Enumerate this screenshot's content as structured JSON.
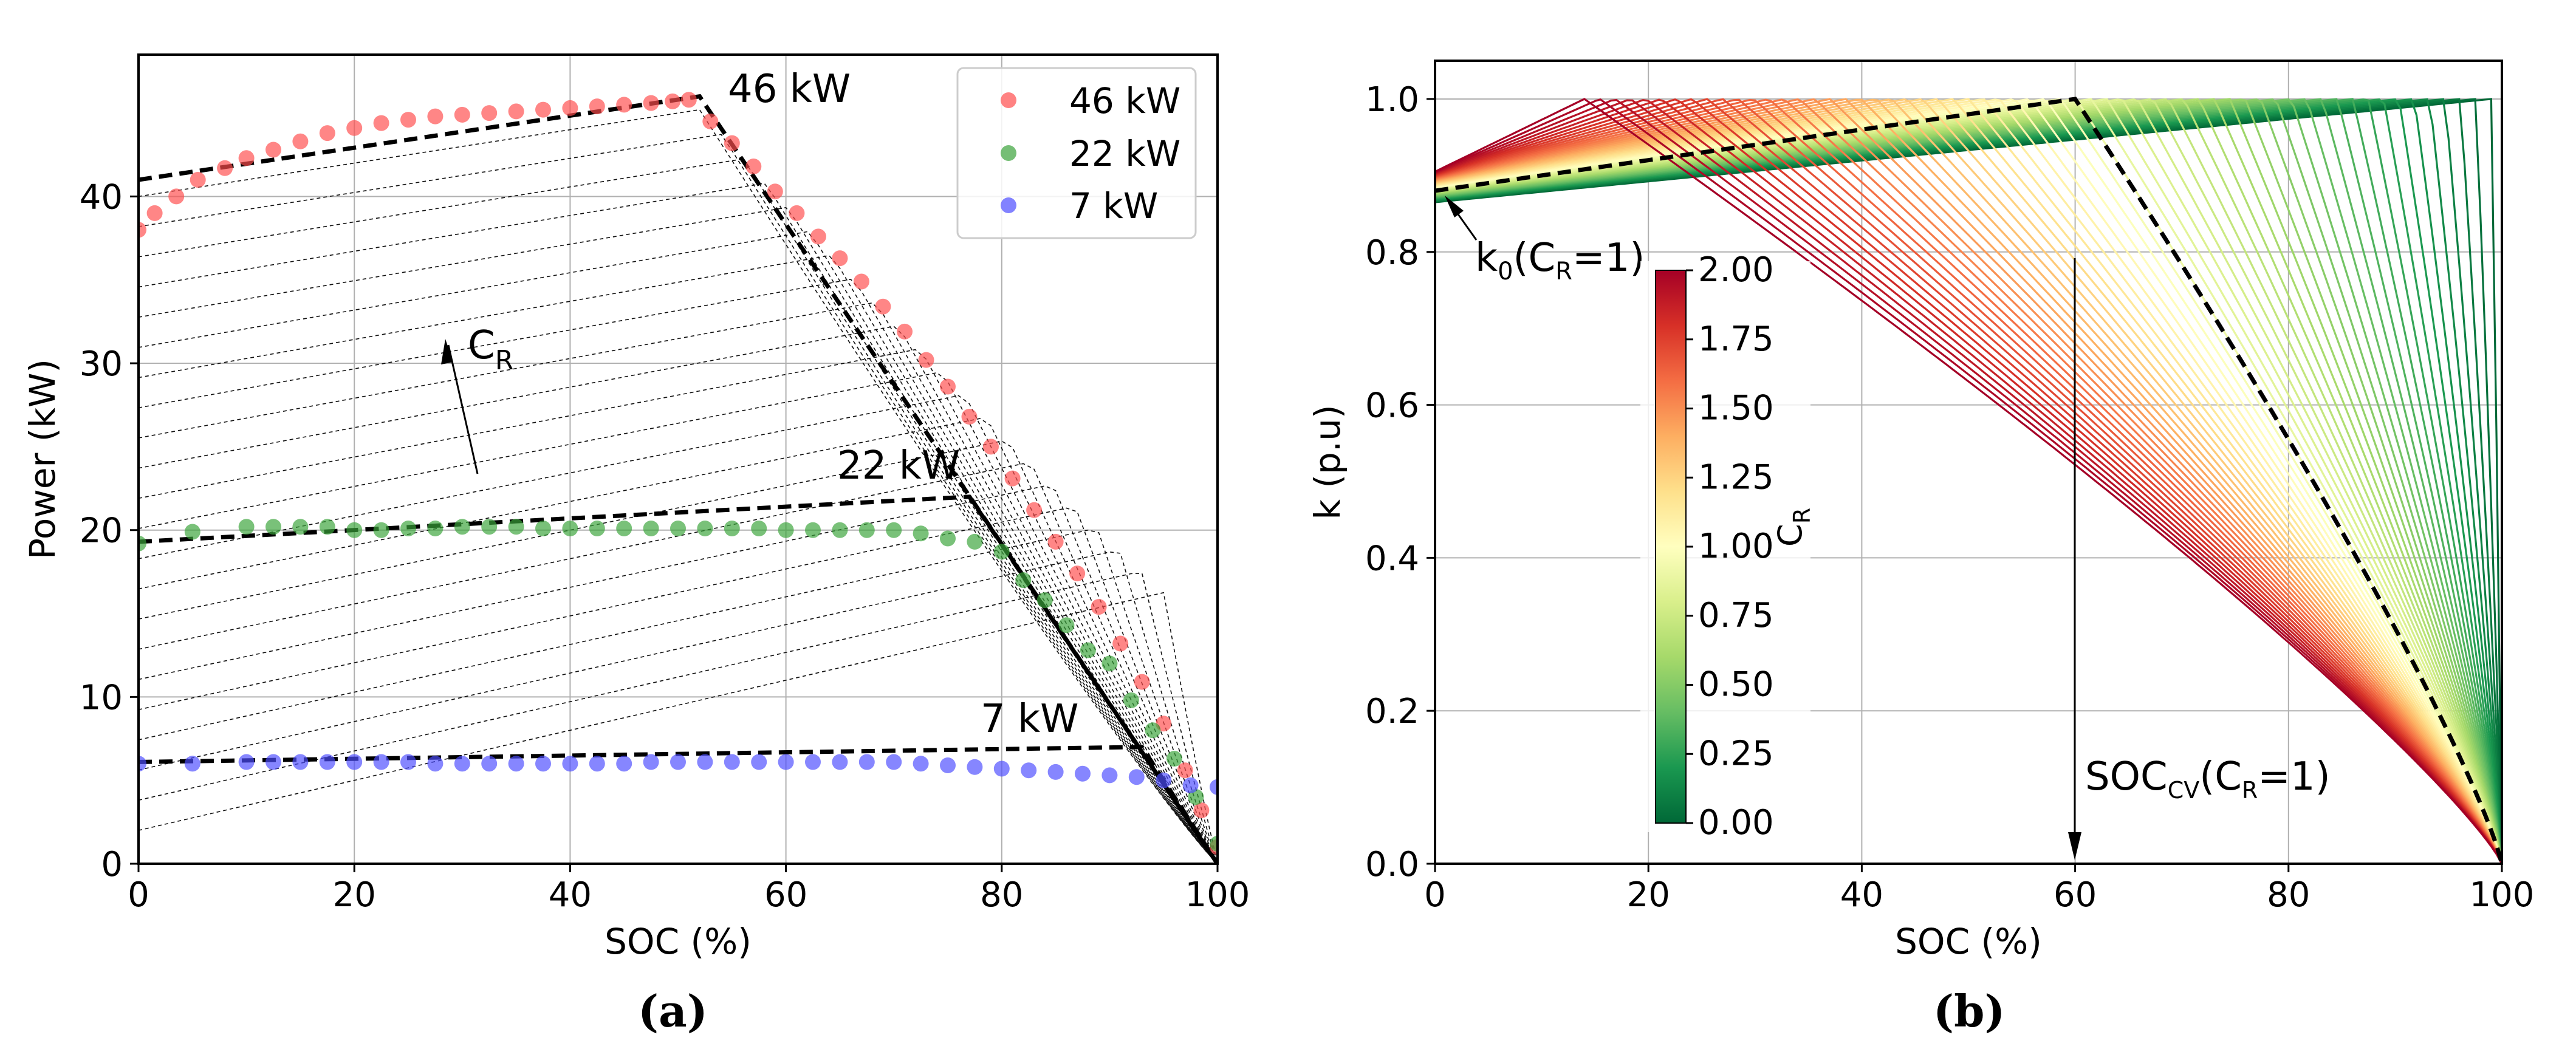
{
  "chart_data": [
    {
      "type": "line",
      "panel": "(a)",
      "panel_label": {
        "pre": "(",
        "letter": "a",
        "post": ")"
      },
      "xlabel": "SOC (%)",
      "ylabel": "Power (kW)",
      "xlim": [
        0,
        100
      ],
      "ylim": [
        0,
        48.5
      ],
      "xticks": [
        "0",
        "20",
        "40",
        "60",
        "80",
        "100"
      ],
      "yticks": [
        "0",
        "10",
        "20",
        "30",
        "40"
      ],
      "grid": true,
      "legend": {
        "position": "top-right",
        "entries": [
          {
            "label": "46 kW",
            "color": "#ff4d4d"
          },
          {
            "label": "22 kW",
            "color": "#3aa33a"
          },
          {
            "label": "7 kW",
            "color": "#4d4dff"
          }
        ]
      },
      "annotations": {
        "46kw": "46 kW",
        "22kw": "22 kW",
        "7kw": "7 kW",
        "cr_main": "C",
        "cr_sub": "R"
      },
      "model_curves": [
        {
          "name": "46 kW model",
          "points": [
            [
              0,
              41
            ],
            [
              52,
              46
            ],
            [
              100,
              0
            ]
          ]
        },
        {
          "name": "22 kW model",
          "points": [
            [
              0,
              19.3
            ],
            [
              77,
              22
            ],
            [
              100,
              0
            ]
          ]
        },
        {
          "name": "7 kW model",
          "points": [
            [
              0,
              6.1
            ],
            [
              93,
              7
            ],
            [
              100,
              0
            ]
          ]
        }
      ],
      "family": {
        "count": 22,
        "base_min": 2,
        "base_max": 40,
        "slope_start": 0.15,
        "slope_end": 0.1,
        "knee_start": 95,
        "knee_end": 52
      },
      "series": [
        {
          "name": "46 kW",
          "color": "#ff4d4d",
          "points": [
            [
              0,
              38
            ],
            [
              1.5,
              39
            ],
            [
              3.5,
              40
            ],
            [
              5.5,
              41
            ],
            [
              8,
              41.7
            ],
            [
              10,
              42.3
            ],
            [
              12.5,
              42.8
            ],
            [
              15,
              43.3
            ],
            [
              17.5,
              43.8
            ],
            [
              20,
              44.1
            ],
            [
              22.5,
              44.4
            ],
            [
              25,
              44.6
            ],
            [
              27.5,
              44.8
            ],
            [
              30,
              44.9
            ],
            [
              32.5,
              45
            ],
            [
              35,
              45.1
            ],
            [
              37.5,
              45.2
            ],
            [
              40,
              45.3
            ],
            [
              42.5,
              45.4
            ],
            [
              45,
              45.5
            ],
            [
              47.5,
              45.6
            ],
            [
              49.5,
              45.7
            ],
            [
              51,
              45.8
            ],
            [
              53,
              44.5
            ],
            [
              55,
              43.2
            ],
            [
              57,
              41.8
            ],
            [
              59,
              40.3
            ],
            [
              61,
              39
            ],
            [
              63,
              37.6
            ],
            [
              65,
              36.3
            ],
            [
              67,
              34.9
            ],
            [
              69,
              33.4
            ],
            [
              71,
              31.9
            ],
            [
              73,
              30.2
            ],
            [
              75,
              28.6
            ],
            [
              77,
              26.8
            ],
            [
              79,
              25
            ],
            [
              81,
              23.1
            ],
            [
              83,
              21.2
            ],
            [
              85,
              19.3
            ],
            [
              87,
              17.4
            ],
            [
              89,
              15.4
            ],
            [
              91,
              13.2
            ],
            [
              93,
              10.9
            ],
            [
              95,
              8.4
            ],
            [
              97,
              5.6
            ],
            [
              98.5,
              3.2
            ],
            [
              100,
              1
            ]
          ]
        },
        {
          "name": "22 kW",
          "color": "#3aa33a",
          "points": [
            [
              0,
              19.2
            ],
            [
              5,
              19.9
            ],
            [
              10,
              20.2
            ],
            [
              12.5,
              20.2
            ],
            [
              15,
              20.2
            ],
            [
              17.5,
              20.2
            ],
            [
              20,
              20
            ],
            [
              22.5,
              20
            ],
            [
              25,
              20.1
            ],
            [
              27.5,
              20.1
            ],
            [
              30,
              20.2
            ],
            [
              32.5,
              20.2
            ],
            [
              35,
              20.2
            ],
            [
              37.5,
              20.1
            ],
            [
              40,
              20.1
            ],
            [
              42.5,
              20.1
            ],
            [
              45,
              20.1
            ],
            [
              47.5,
              20.1
            ],
            [
              50,
              20.1
            ],
            [
              52.5,
              20.1
            ],
            [
              55,
              20.1
            ],
            [
              57.5,
              20.1
            ],
            [
              60,
              20
            ],
            [
              62.5,
              20
            ],
            [
              65,
              20
            ],
            [
              67.5,
              20
            ],
            [
              70,
              20
            ],
            [
              72.5,
              19.8
            ],
            [
              75,
              19.5
            ],
            [
              77.5,
              19.3
            ],
            [
              80,
              18.7
            ],
            [
              82,
              17
            ],
            [
              84,
              15.8
            ],
            [
              86,
              14.3
            ],
            [
              88,
              12.8
            ],
            [
              90,
              12
            ],
            [
              92,
              9.8
            ],
            [
              94,
              8
            ],
            [
              96,
              6.3
            ],
            [
              98,
              4
            ],
            [
              100,
              1.2
            ]
          ]
        },
        {
          "name": "7 kW",
          "color": "#4d4dff",
          "points": [
            [
              0,
              6
            ],
            [
              5,
              6
            ],
            [
              10,
              6.1
            ],
            [
              12.5,
              6.1
            ],
            [
              15,
              6.1
            ],
            [
              17.5,
              6.1
            ],
            [
              20,
              6.1
            ],
            [
              22.5,
              6.1
            ],
            [
              25,
              6.1
            ],
            [
              27.5,
              6
            ],
            [
              30,
              6
            ],
            [
              32.5,
              6
            ],
            [
              35,
              6
            ],
            [
              37.5,
              6
            ],
            [
              40,
              6
            ],
            [
              42.5,
              6
            ],
            [
              45,
              6
            ],
            [
              47.5,
              6.1
            ],
            [
              50,
              6.1
            ],
            [
              52.5,
              6.1
            ],
            [
              55,
              6.1
            ],
            [
              57.5,
              6.1
            ],
            [
              60,
              6.1
            ],
            [
              62.5,
              6.1
            ],
            [
              65,
              6.1
            ],
            [
              67.5,
              6.1
            ],
            [
              70,
              6.1
            ],
            [
              72.5,
              6
            ],
            [
              75,
              5.9
            ],
            [
              77.5,
              5.8
            ],
            [
              80,
              5.7
            ],
            [
              82.5,
              5.6
            ],
            [
              85,
              5.5
            ],
            [
              87.5,
              5.4
            ],
            [
              90,
              5.3
            ],
            [
              92.5,
              5.2
            ],
            [
              95,
              5
            ],
            [
              97.5,
              4.7
            ],
            [
              100,
              4.6
            ]
          ]
        }
      ]
    },
    {
      "type": "line",
      "panel": "(b)",
      "panel_label": {
        "pre": "(",
        "letter": "b",
        "post": ")"
      },
      "xlabel": "SOC (%)",
      "ylabel": "k (p.u)",
      "xlim": [
        0,
        100
      ],
      "ylim": [
        0,
        1.05
      ],
      "xticks": [
        "0",
        "20",
        "40",
        "60",
        "80",
        "100"
      ],
      "yticks": [
        "0.0",
        "0.2",
        "0.4",
        "0.6",
        "0.8",
        "1.0"
      ],
      "grid": true,
      "family": {
        "count": 60,
        "cr_min": 0,
        "cr_max": 2,
        "k0_low_cr": 0.865,
        "k0_high_cr": 0.905,
        "knee_low_cr": 99,
        "knee_high_cr": 14
      },
      "highlight_curve": {
        "cr": 1,
        "k0": 0.88,
        "knee": 60,
        "style": "dashed"
      },
      "colorbar": {
        "label_main": "C",
        "label_sub": "R",
        "range": [
          0,
          2
        ],
        "ticks": [
          "0.00",
          "0.25",
          "0.50",
          "0.75",
          "1.00",
          "1.25",
          "1.50",
          "1.75",
          "2.00"
        ],
        "colors": [
          "#006837",
          "#1a9850",
          "#66bd63",
          "#a6d96a",
          "#d9ef8b",
          "#ffffbf",
          "#fee08b",
          "#fdae61",
          "#f46d43",
          "#d73027",
          "#a50026"
        ]
      },
      "annotations": {
        "k0_main": "k",
        "k0_sub": "0",
        "k0_rest": "(C",
        "k0_sub2": "R",
        "k0_tail": "=1)",
        "soccv_main": "SOC",
        "soccv_sub": "CV",
        "soccv_rest": "(C",
        "soccv_sub2": "R",
        "soccv_tail": "=1)"
      }
    }
  ]
}
